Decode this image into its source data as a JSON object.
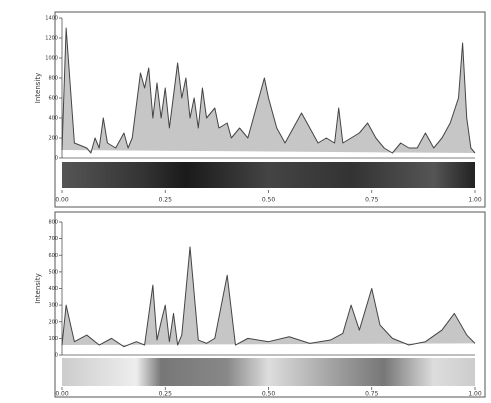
{
  "chart_data": [
    {
      "type": "line",
      "y_label": "Intensity",
      "x": [
        0,
        0.01,
        0.03,
        0.06,
        0.07,
        0.08,
        0.09,
        0.1,
        0.11,
        0.13,
        0.15,
        0.16,
        0.17,
        0.19,
        0.2,
        0.21,
        0.22,
        0.23,
        0.24,
        0.25,
        0.26,
        0.28,
        0.29,
        0.3,
        0.31,
        0.32,
        0.33,
        0.34,
        0.35,
        0.37,
        0.38,
        0.4,
        0.41,
        0.43,
        0.45,
        0.47,
        0.49,
        0.5,
        0.52,
        0.54,
        0.56,
        0.58,
        0.6,
        0.62,
        0.64,
        0.66,
        0.67,
        0.68,
        0.7,
        0.72,
        0.74,
        0.76,
        0.78,
        0.8,
        0.82,
        0.84,
        0.86,
        0.88,
        0.9,
        0.92,
        0.94,
        0.96,
        0.97,
        0.98,
        0.99,
        1.0
      ],
      "series": [
        {
          "color": "#444444",
          "values": [
            80,
            1300,
            150,
            100,
            50,
            200,
            100,
            400,
            150,
            100,
            250,
            100,
            200,
            850,
            700,
            900,
            400,
            750,
            400,
            700,
            300,
            950,
            600,
            800,
            400,
            600,
            300,
            700,
            400,
            500,
            300,
            350,
            200,
            300,
            200,
            500,
            800,
            600,
            300,
            150,
            300,
            450,
            300,
            150,
            200,
            150,
            500,
            150,
            200,
            250,
            350,
            200,
            100,
            50,
            150,
            100,
            100,
            250,
            100,
            200,
            350,
            600,
            1150,
            400,
            100,
            50
          ]
        }
      ],
      "xlim": [
        0,
        1
      ],
      "ylim": [
        0,
        1400
      ],
      "xticks": [
        {
          "value": 0,
          "label": "0.00"
        },
        {
          "value": 0.25,
          "label": "0.25"
        },
        {
          "value": 0.5,
          "label": "0.50"
        },
        {
          "value": 0.75,
          "label": "0.75"
        },
        {
          "value": 1,
          "label": "1.00"
        }
      ],
      "yticks": [
        0,
        200,
        400,
        600,
        800,
        1000,
        1200,
        1400
      ]
    },
    {
      "type": "line",
      "y_label": "Intensity",
      "x": [
        0,
        0.01,
        0.03,
        0.06,
        0.09,
        0.12,
        0.15,
        0.18,
        0.2,
        0.22,
        0.23,
        0.24,
        0.25,
        0.26,
        0.27,
        0.28,
        0.29,
        0.31,
        0.33,
        0.35,
        0.37,
        0.4,
        0.42,
        0.45,
        0.5,
        0.55,
        0.6,
        0.65,
        0.68,
        0.7,
        0.72,
        0.75,
        0.77,
        0.8,
        0.84,
        0.88,
        0.92,
        0.95,
        0.98,
        1.0
      ],
      "series": [
        {
          "color": "#444444",
          "values": [
            60,
            300,
            80,
            120,
            60,
            100,
            50,
            80,
            60,
            420,
            90,
            200,
            300,
            80,
            250,
            60,
            120,
            650,
            90,
            70,
            100,
            480,
            60,
            100,
            80,
            110,
            70,
            90,
            130,
            300,
            150,
            400,
            180,
            100,
            60,
            80,
            150,
            250,
            120,
            70
          ]
        }
      ],
      "xlim": [
        0,
        1
      ],
      "ylim": [
        0,
        800
      ],
      "xticks": [
        {
          "value": 0,
          "label": "0.00"
        },
        {
          "value": 0.25,
          "label": "0.25"
        },
        {
          "value": 0.5,
          "label": "0.50"
        },
        {
          "value": 0.75,
          "label": "0.75"
        },
        {
          "value": 1,
          "label": "1.00"
        }
      ],
      "yticks": [
        0,
        100,
        200,
        300,
        400,
        500,
        600,
        700,
        800
      ]
    }
  ]
}
